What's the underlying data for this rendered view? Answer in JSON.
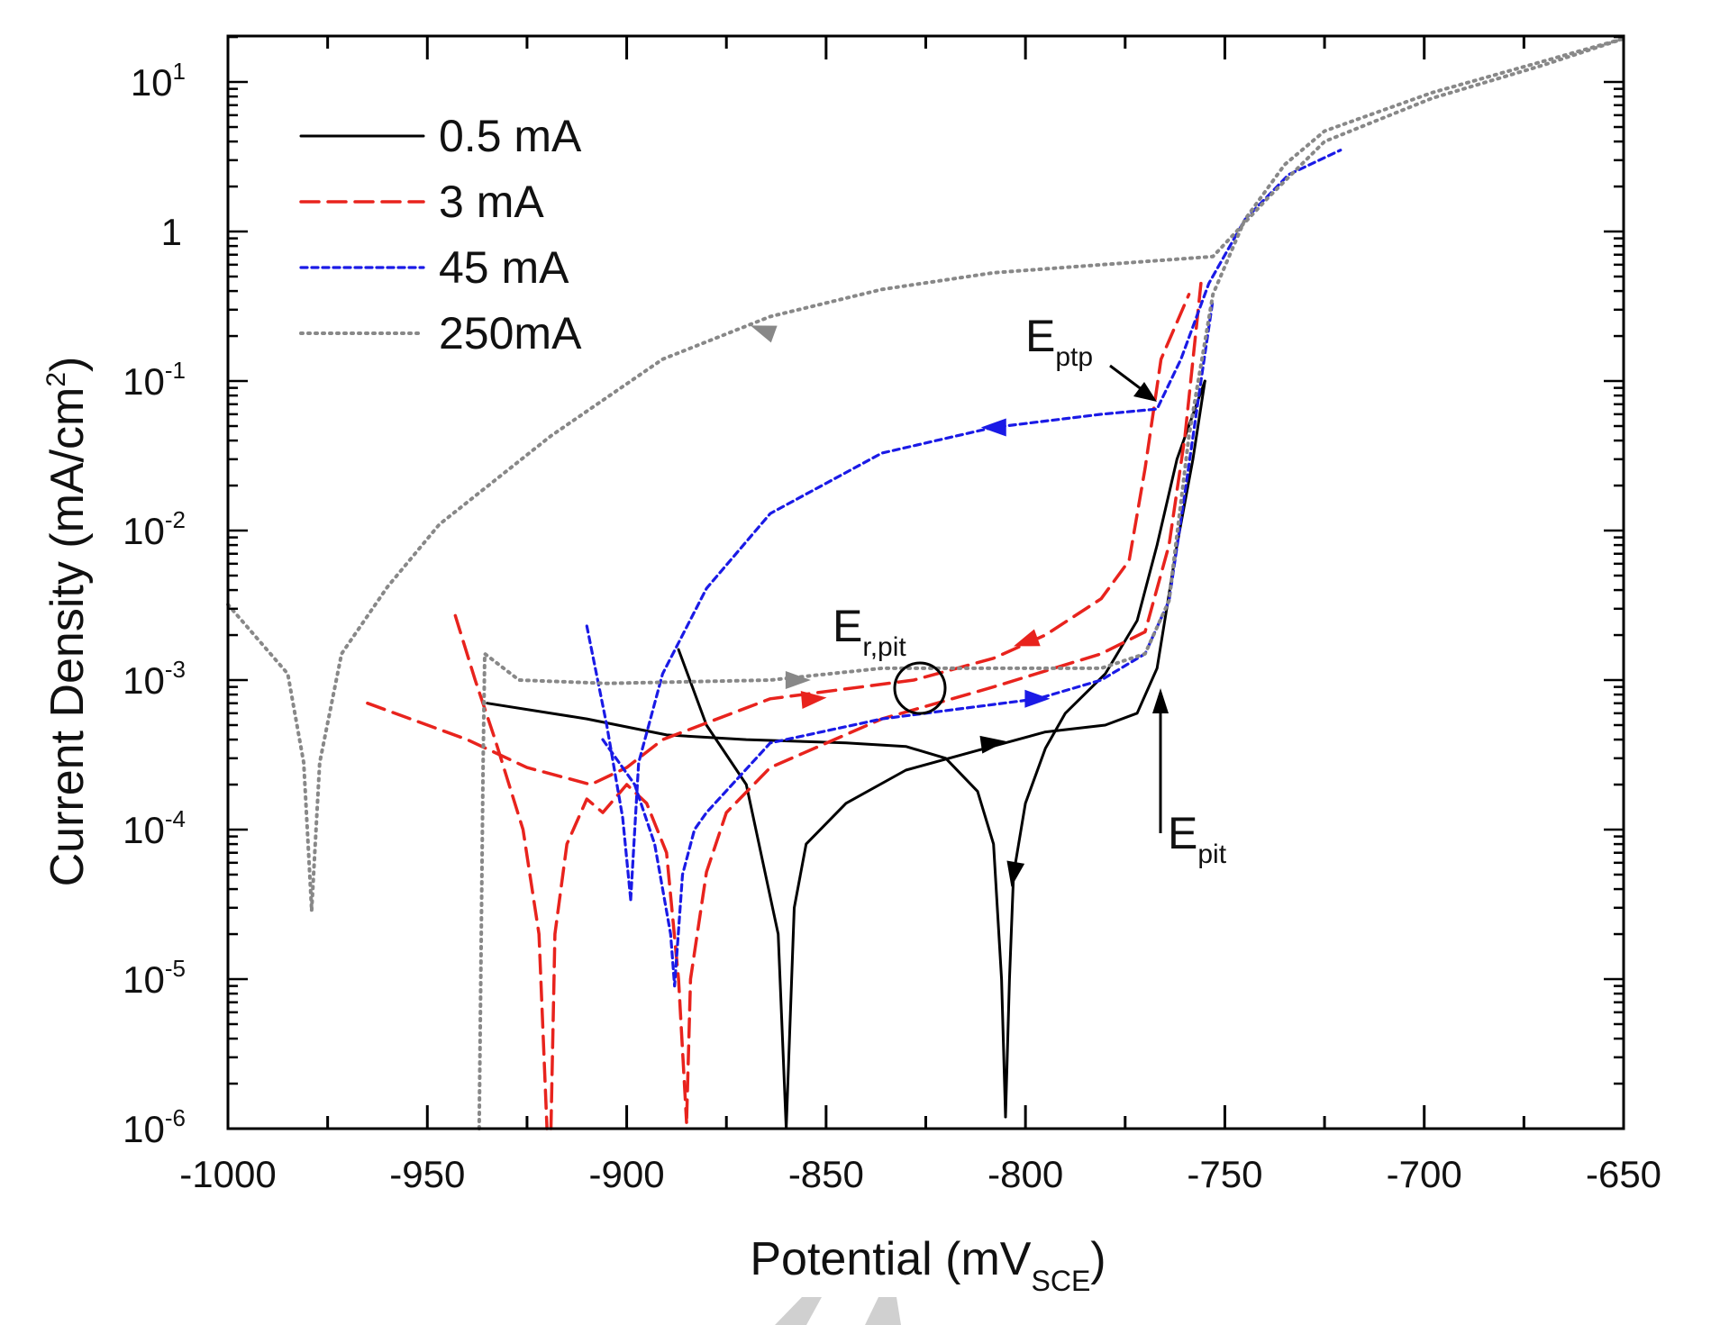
{
  "chart_data": {
    "type": "line",
    "xlabel": "Potential (mV",
    "xlabel_sub": "SCE",
    "xlabel_end": ")",
    "ylabel": "Current Density (mA/cm",
    "ylabel_sup": "2",
    "ylabel_end": ")",
    "xlim": [
      -1000,
      -650
    ],
    "ylim": [
      1e-06,
      20.3
    ],
    "yscale": "log",
    "grid": false,
    "legend_position": "top-left",
    "x_ticks": [
      "-1000",
      "-950",
      "-900",
      "-850",
      "-800",
      "-750",
      "-700",
      "-650"
    ],
    "y_ticks": [
      {
        "base": "10",
        "exp": "1"
      },
      {
        "base": "1",
        "exp": ""
      },
      {
        "base": "10",
        "exp": "-1"
      },
      {
        "base": "10",
        "exp": "-2"
      },
      {
        "base": "10",
        "exp": "-3"
      },
      {
        "base": "10",
        "exp": "-4"
      },
      {
        "base": "10",
        "exp": "-5"
      },
      {
        "base": "10",
        "exp": "-6"
      }
    ],
    "series": [
      {
        "name": "0.5 mA",
        "color": "#000000",
        "style": "solid",
        "segments": [
          [
            [
              -935,
              0.0007
            ],
            [
              -910,
              0.00055
            ],
            [
              -890,
              0.00043
            ],
            [
              -870,
              0.0004
            ],
            [
              -845,
              0.00038
            ],
            [
              -830,
              0.00036
            ],
            [
              -820,
              0.0003
            ],
            [
              -812,
              0.00018
            ],
            [
              -808,
              8e-05
            ],
            [
              -806,
              1e-05
            ],
            [
              -805,
              1.2e-06
            ]
          ],
          [
            [
              -805,
              1.2e-06
            ],
            [
              -804,
              1e-05
            ],
            [
              -803,
              5e-05
            ],
            [
              -800,
              0.00015
            ],
            [
              -795,
              0.00035
            ],
            [
              -790,
              0.0006
            ],
            [
              -780,
              0.0011
            ],
            [
              -772,
              0.0025
            ],
            [
              -767,
              0.008
            ],
            [
              -762,
              0.03
            ],
            [
              -755,
              0.1
            ]
          ],
          [
            [
              -887,
              0.0016
            ],
            [
              -880,
              0.0005
            ],
            [
              -870,
              0.0002
            ],
            [
              -862,
              2e-05
            ],
            [
              -860,
              1e-06
            ],
            [
              -858,
              3e-05
            ],
            [
              -855,
              8e-05
            ],
            [
              -845,
              0.00015
            ],
            [
              -830,
              0.00025
            ],
            [
              -810,
              0.00035
            ],
            [
              -795,
              0.00045
            ],
            [
              -780,
              0.0005
            ],
            [
              -772,
              0.0006
            ],
            [
              -767,
              0.0012
            ],
            [
              -762,
              0.008
            ],
            [
              -758,
              0.03
            ],
            [
              -755,
              0.1
            ]
          ]
        ]
      },
      {
        "name": "3 mA",
        "color": "#e8231d",
        "style": "dashed",
        "segments": [
          [
            [
              -965,
              0.0007
            ],
            [
              -940,
              0.0004
            ],
            [
              -925,
              0.00026
            ],
            [
              -909,
              0.0002
            ],
            [
              -900,
              0.00026
            ],
            [
              -891,
              0.0004
            ],
            [
              -864,
              0.00075
            ],
            [
              -828,
              0.001
            ],
            [
              -808,
              0.0014
            ],
            [
              -795,
              0.002
            ],
            [
              -781,
              0.0035
            ],
            [
              -774,
              0.0063
            ],
            [
              -770,
              0.026
            ],
            [
              -766,
              0.14
            ],
            [
              -759,
              0.38
            ]
          ],
          [
            [
              -943,
              0.0027
            ],
            [
              -938,
              0.001
            ],
            [
              -933,
              0.0004
            ],
            [
              -926,
              0.0001
            ],
            [
              -922,
              2e-05
            ],
            [
              -920,
              1e-06
            ]
          ],
          [
            [
              -919,
              1e-06
            ],
            [
              -918,
              2e-05
            ],
            [
              -915,
              8e-05
            ],
            [
              -910,
              0.00016
            ],
            [
              -906,
              0.00013
            ],
            [
              -900,
              0.0002
            ],
            [
              -895,
              0.00015
            ],
            [
              -890,
              7e-05
            ],
            [
              -887,
              1e-05
            ],
            [
              -885,
              1.1e-06
            ]
          ],
          [
            [
              -756,
              0.45
            ],
            [
              -760,
              0.043
            ],
            [
              -764,
              0.008
            ],
            [
              -770,
              0.0021
            ],
            [
              -781,
              0.0015
            ],
            [
              -808,
              0.0009
            ],
            [
              -836,
              0.00055
            ],
            [
              -864,
              0.00026
            ],
            [
              -875,
              0.00013
            ],
            [
              -880,
              5.2e-05
            ],
            [
              -884,
              1e-05
            ],
            [
              -885,
              1.1e-06
            ]
          ]
        ]
      },
      {
        "name": "45 mA",
        "color": "#1a1ae6",
        "style": "short-dashed",
        "segments": [
          [
            [
              -910,
              0.0023
            ],
            [
              -905,
              0.0005
            ],
            [
              -901,
              0.00012
            ],
            [
              -899,
              3.4e-05
            ]
          ],
          [
            [
              -899,
              3.4e-05
            ],
            [
              -897,
              0.00028
            ],
            [
              -891,
              0.0011
            ],
            [
              -880,
              0.0041
            ],
            [
              -864,
              0.013
            ],
            [
              -836,
              0.033
            ],
            [
              -808,
              0.049
            ],
            [
              -781,
              0.06
            ],
            [
              -767,
              0.065
            ],
            [
              -761,
              0.14
            ],
            [
              -754,
              0.45
            ],
            [
              -745,
              1.2
            ],
            [
              -734,
              2.4
            ],
            [
              -721,
              3.5
            ]
          ],
          [
            [
              -906,
              0.0004
            ],
            [
              -898,
              0.0002
            ],
            [
              -893,
              8e-05
            ],
            [
              -889,
              2e-05
            ],
            [
              -888,
              9e-06
            ],
            [
              -886,
              5e-05
            ],
            [
              -883,
              0.0001
            ],
            [
              -880,
              0.00013
            ],
            [
              -864,
              0.00038
            ],
            [
              -836,
              0.00055
            ],
            [
              -797,
              0.00075
            ],
            [
              -781,
              0.001
            ],
            [
              -770,
              0.0015
            ],
            [
              -764,
              0.0034
            ],
            [
              -760,
              0.018
            ],
            [
              -756,
              0.1
            ],
            [
              -753,
              0.35
            ]
          ]
        ]
      },
      {
        "name": "250mA",
        "color": "#888888",
        "style": "dotted",
        "segments": [
          [
            [
              -1000,
              0.0032
            ],
            [
              -985,
              0.0011
            ],
            [
              -981,
              0.00028
            ],
            [
              -979,
              2.9e-05
            ]
          ],
          [
            [
              -979,
              2.9e-05
            ],
            [
              -977,
              0.00028
            ],
            [
              -971.5,
              0.0015
            ],
            [
              -960,
              0.0042
            ],
            [
              -947,
              0.011
            ],
            [
              -919,
              0.043
            ],
            [
              -891,
              0.14
            ],
            [
              -864,
              0.27
            ],
            [
              -836,
              0.41
            ],
            [
              -808,
              0.53
            ],
            [
              -781,
              0.6
            ],
            [
              -753,
              0.68
            ],
            [
              -739,
              1.7
            ],
            [
              -725,
              4
            ],
            [
              -698,
              7.8
            ],
            [
              -670,
              13
            ],
            [
              -650,
              19.5
            ]
          ],
          [
            [
              -937,
              1e-06
            ],
            [
              -936,
              0.00028
            ],
            [
              -935.6,
              0.0015
            ],
            [
              -927,
              0.001
            ],
            [
              -905,
              0.00095
            ],
            [
              -864,
              0.001
            ],
            [
              -836,
              0.0012
            ],
            [
              -808,
              0.0012
            ],
            [
              -781,
              0.0012
            ],
            [
              -770,
              0.0015
            ],
            [
              -764,
              0.0034
            ],
            [
              -759,
              0.043
            ],
            [
              -753,
              0.38
            ],
            [
              -745,
              1.2
            ],
            [
              -735,
              2.8
            ],
            [
              -725,
              4.7
            ],
            [
              -698,
              8.5
            ],
            [
              -650,
              19.5
            ]
          ]
        ]
      }
    ],
    "annotations": [
      {
        "label": "E",
        "sub": "ptp"
      },
      {
        "label": "E",
        "sub": "r,pit"
      },
      {
        "label": "E",
        "sub": "pit"
      }
    ]
  }
}
